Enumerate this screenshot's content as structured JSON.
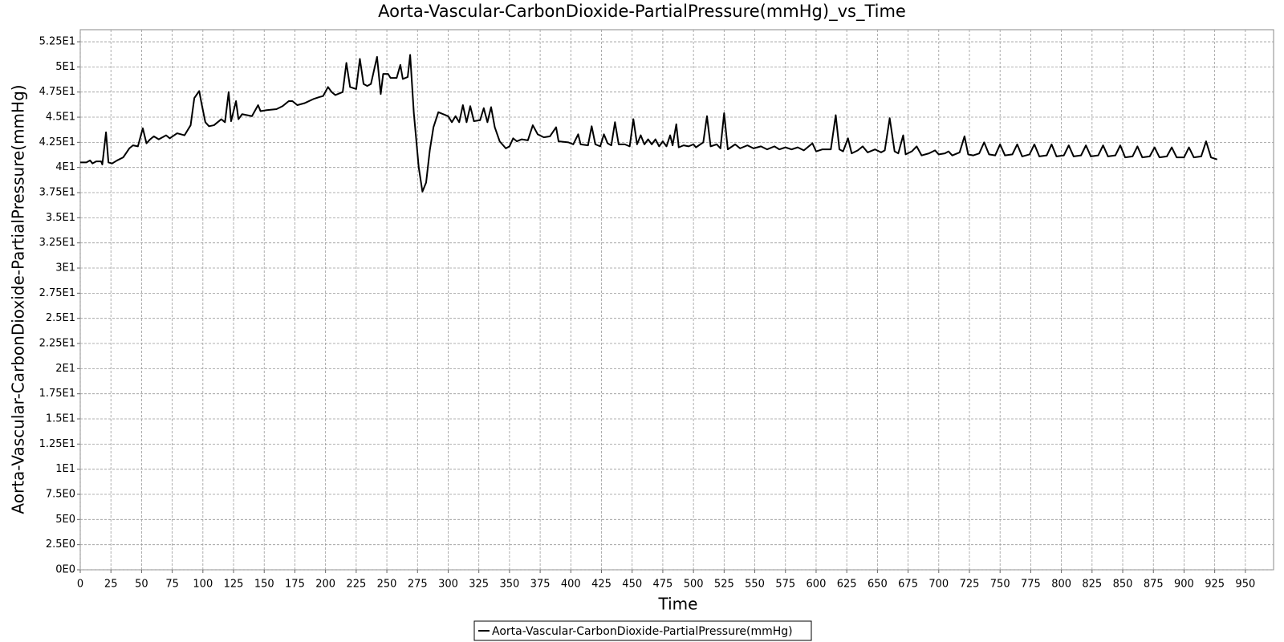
{
  "chart_data": {
    "type": "line",
    "title": "Aorta-Vascular-CarbonDioxide-PartialPressure(mmHg)_vs_Time",
    "x_label": "Time",
    "y_label": "Aorta-Vascular-CarbonDioxide-PartialPressure(mmHg)",
    "x": [
      0,
      5,
      8,
      10,
      13,
      17,
      18,
      21,
      23,
      26,
      30,
      35,
      40,
      43,
      47,
      51,
      54,
      57,
      60,
      64,
      70,
      73,
      79,
      85,
      90,
      93,
      97,
      99,
      102,
      105,
      109,
      115,
      118,
      121,
      123,
      127,
      129,
      132,
      140,
      145,
      147,
      152,
      160,
      165,
      170,
      173,
      177,
      183,
      190,
      195,
      198,
      202,
      205,
      208,
      214,
      217,
      220,
      225,
      228,
      231,
      234,
      237,
      242,
      245,
      247,
      251,
      253,
      258,
      261,
      263,
      267,
      269,
      272,
      276,
      279,
      282,
      285,
      288,
      292,
      300,
      303,
      306,
      309,
      312,
      315,
      318,
      321,
      326,
      329,
      332,
      335,
      338,
      342,
      347,
      350,
      353,
      356,
      360,
      365,
      369,
      373,
      378,
      383,
      388,
      390,
      398,
      402,
      406,
      408,
      414,
      417,
      420,
      424,
      427,
      430,
      433,
      436,
      439,
      444,
      448,
      451,
      454,
      457,
      460,
      463,
      466,
      469,
      472,
      475,
      478,
      481,
      483,
      486,
      488,
      492,
      496,
      500,
      502,
      508,
      511,
      514,
      519,
      522,
      525,
      528,
      534,
      538,
      544,
      549,
      555,
      560,
      566,
      570,
      575,
      580,
      585,
      590,
      597,
      600,
      605,
      612,
      616,
      619,
      622,
      626,
      629,
      634,
      638,
      642,
      648,
      653,
      656,
      660,
      664,
      667,
      671,
      673,
      678,
      682,
      686,
      692,
      697,
      700,
      705,
      708,
      711,
      717,
      721,
      724,
      728,
      733,
      737,
      741,
      746,
      750,
      754,
      760,
      764,
      768,
      774,
      778,
      782,
      788,
      792,
      796,
      802,
      806,
      810,
      816,
      820,
      824,
      830,
      834,
      838,
      844,
      848,
      852,
      858,
      862,
      866,
      872,
      876,
      880,
      886,
      890,
      894,
      900,
      904,
      908,
      914,
      918,
      922,
      927
    ],
    "series": [
      {
        "name": "Aorta-Vascular-CarbonDioxide-PartialPressure(mmHg)",
        "color": "#000000",
        "values": [
          40.5,
          40.5,
          40.7,
          40.4,
          40.6,
          40.6,
          40.3,
          43.5,
          40.5,
          40.4,
          40.7,
          41.0,
          41.9,
          42.2,
          42.1,
          43.9,
          42.4,
          42.8,
          43.1,
          42.8,
          43.2,
          42.9,
          43.4,
          43.2,
          44.2,
          46.9,
          47.6,
          46.3,
          44.5,
          44.1,
          44.2,
          44.8,
          44.5,
          47.5,
          44.6,
          46.6,
          44.8,
          45.3,
          45.1,
          46.2,
          45.6,
          45.7,
          45.8,
          46.1,
          46.6,
          46.6,
          46.2,
          46.4,
          46.8,
          47.0,
          47.1,
          48.0,
          47.5,
          47.2,
          47.5,
          50.4,
          48.0,
          47.8,
          50.8,
          48.3,
          48.1,
          48.3,
          51.0,
          47.3,
          49.3,
          49.3,
          48.9,
          48.9,
          50.2,
          48.8,
          49.0,
          51.2,
          45.4,
          40.0,
          37.6,
          38.5,
          41.7,
          44.0,
          45.5,
          45.1,
          44.5,
          45.1,
          44.5,
          46.2,
          44.5,
          46.1,
          44.6,
          44.7,
          45.9,
          44.5,
          46.0,
          44.0,
          42.6,
          41.9,
          42.1,
          42.9,
          42.6,
          42.8,
          42.7,
          44.2,
          43.3,
          43.0,
          43.1,
          44.0,
          42.6,
          42.5,
          42.3,
          43.3,
          42.3,
          42.2,
          44.1,
          42.3,
          42.1,
          43.3,
          42.4,
          42.2,
          44.5,
          42.3,
          42.3,
          42.1,
          44.8,
          42.3,
          43.2,
          42.3,
          42.8,
          42.3,
          42.8,
          42.1,
          42.6,
          42.1,
          43.2,
          42.2,
          44.3,
          42.0,
          42.2,
          42.1,
          42.3,
          42.0,
          42.5,
          45.1,
          42.1,
          42.3,
          41.9,
          45.4,
          41.8,
          42.3,
          41.9,
          42.2,
          41.9,
          42.1,
          41.8,
          42.1,
          41.8,
          42.0,
          41.8,
          42.0,
          41.7,
          42.4,
          41.6,
          41.8,
          41.8,
          45.2,
          41.8,
          41.6,
          42.9,
          41.4,
          41.7,
          42.1,
          41.5,
          41.8,
          41.5,
          41.7,
          44.9,
          41.6,
          41.4,
          43.2,
          41.3,
          41.6,
          42.1,
          41.2,
          41.4,
          41.7,
          41.3,
          41.4,
          41.6,
          41.2,
          41.5,
          43.1,
          41.3,
          41.2,
          41.4,
          42.5,
          41.3,
          41.2,
          42.3,
          41.2,
          41.3,
          42.3,
          41.1,
          41.3,
          42.3,
          41.1,
          41.2,
          42.3,
          41.1,
          41.2,
          42.2,
          41.1,
          41.2,
          42.2,
          41.1,
          41.2,
          42.2,
          41.1,
          41.2,
          42.2,
          41.0,
          41.1,
          42.1,
          41.0,
          41.1,
          42.0,
          41.0,
          41.1,
          42.0,
          41.0,
          41.0,
          42.0,
          41.0,
          41.1,
          42.6,
          41.0,
          40.8
        ]
      }
    ],
    "xlim": [
      0,
      973
    ],
    "xticks": [
      0,
      25,
      50,
      75,
      100,
      125,
      150,
      175,
      200,
      225,
      250,
      275,
      300,
      325,
      350,
      375,
      400,
      425,
      450,
      475,
      500,
      525,
      550,
      575,
      600,
      625,
      650,
      675,
      700,
      725,
      750,
      775,
      800,
      825,
      850,
      875,
      900,
      925,
      950
    ],
    "ylim": [
      0,
      53.7
    ],
    "yticks": [
      {
        "value": 0,
        "label": "0E0"
      },
      {
        "value": 2.5,
        "label": "2.5E0"
      },
      {
        "value": 5,
        "label": "5E0"
      },
      {
        "value": 7.5,
        "label": "7.5E0"
      },
      {
        "value": 10,
        "label": "1E1"
      },
      {
        "value": 12.5,
        "label": "1.25E1"
      },
      {
        "value": 15,
        "label": "1.5E1"
      },
      {
        "value": 17.5,
        "label": "1.75E1"
      },
      {
        "value": 20,
        "label": "2E1"
      },
      {
        "value": 22.5,
        "label": "2.25E1"
      },
      {
        "value": 25,
        "label": "2.5E1"
      },
      {
        "value": 27.5,
        "label": "2.75E1"
      },
      {
        "value": 30,
        "label": "3E1"
      },
      {
        "value": 32.5,
        "label": "3.25E1"
      },
      {
        "value": 35,
        "label": "3.5E1"
      },
      {
        "value": 37.5,
        "label": "3.75E1"
      },
      {
        "value": 40,
        "label": "4E1"
      },
      {
        "value": 42.5,
        "label": "4.25E1"
      },
      {
        "value": 45,
        "label": "4.5E1"
      },
      {
        "value": 47.5,
        "label": "4.75E1"
      },
      {
        "value": 50,
        "label": "5E1"
      },
      {
        "value": 52.5,
        "label": "5.25E1"
      }
    ],
    "grid": true
  }
}
